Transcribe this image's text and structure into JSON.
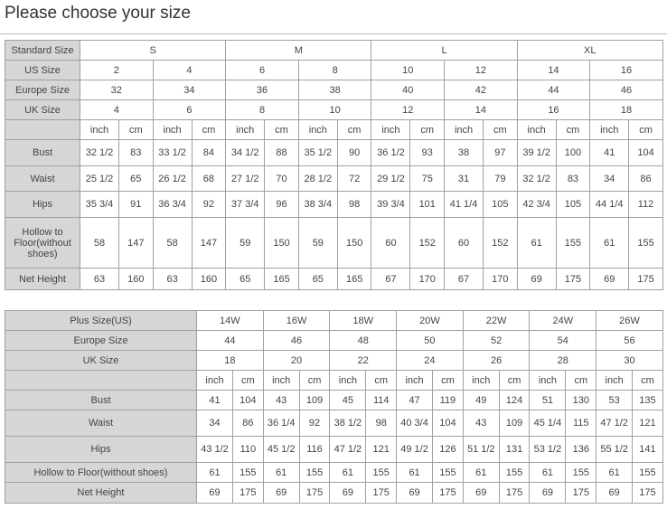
{
  "title": "Please choose your size",
  "standard_table": {
    "header_label": "Standard Size",
    "groups": [
      "S",
      "M",
      "L",
      "XL"
    ],
    "rows_sizes": [
      {
        "label": "US Size",
        "values": [
          "2",
          "4",
          "6",
          "8",
          "10",
          "12",
          "14",
          "16"
        ]
      },
      {
        "label": "Europe Size",
        "values": [
          "32",
          "34",
          "36",
          "38",
          "40",
          "42",
          "44",
          "46"
        ]
      },
      {
        "label": "UK Size",
        "values": [
          "4",
          "6",
          "8",
          "10",
          "12",
          "14",
          "16",
          "18"
        ]
      }
    ],
    "units": [
      "inch",
      "cm"
    ],
    "rows_measure": [
      {
        "label": "Bust",
        "values": [
          "32 1/2",
          "83",
          "33 1/2",
          "84",
          "34 1/2",
          "88",
          "35 1/2",
          "90",
          "36 1/2",
          "93",
          "38",
          "97",
          "39 1/2",
          "100",
          "41",
          "104"
        ]
      },
      {
        "label": "Waist",
        "values": [
          "25 1/2",
          "65",
          "26 1/2",
          "68",
          "27 1/2",
          "70",
          "28 1/2",
          "72",
          "29 1/2",
          "75",
          "31",
          "79",
          "32 1/2",
          "83",
          "34",
          "86"
        ]
      },
      {
        "label": "Hips",
        "values": [
          "35 3/4",
          "91",
          "36 3/4",
          "92",
          "37 3/4",
          "96",
          "38 3/4",
          "98",
          "39 3/4",
          "101",
          "41 1/4",
          "105",
          "42 3/4",
          "105",
          "44 1/4",
          "112"
        ]
      },
      {
        "label": "Hollow to Floor(without shoes)",
        "values": [
          "58",
          "147",
          "58",
          "147",
          "59",
          "150",
          "59",
          "150",
          "60",
          "152",
          "60",
          "152",
          "61",
          "155",
          "61",
          "155"
        ]
      },
      {
        "label": "Net Height",
        "values": [
          "63",
          "160",
          "63",
          "160",
          "65",
          "165",
          "65",
          "165",
          "67",
          "170",
          "67",
          "170",
          "69",
          "175",
          "69",
          "175"
        ]
      }
    ]
  },
  "plus_table": {
    "rows_sizes": [
      {
        "label": "Plus Size(US)",
        "values": [
          "14W",
          "16W",
          "18W",
          "20W",
          "22W",
          "24W",
          "26W"
        ]
      },
      {
        "label": "Europe Size",
        "values": [
          "44",
          "46",
          "48",
          "50",
          "52",
          "54",
          "56"
        ]
      },
      {
        "label": "UK Size",
        "values": [
          "18",
          "20",
          "22",
          "24",
          "26",
          "28",
          "30"
        ]
      }
    ],
    "units": [
      "inch",
      "cm"
    ],
    "rows_measure": [
      {
        "label": "Bust",
        "values": [
          "41",
          "104",
          "43",
          "109",
          "45",
          "114",
          "47",
          "119",
          "49",
          "124",
          "51",
          "130",
          "53",
          "135"
        ]
      },
      {
        "label": "Waist",
        "values": [
          "34",
          "86",
          "36 1/4",
          "92",
          "38 1/2",
          "98",
          "40 3/4",
          "104",
          "43",
          "109",
          "45 1/4",
          "115",
          "47 1/2",
          "121"
        ]
      },
      {
        "label": "Hips",
        "values": [
          "43 1/2",
          "110",
          "45 1/2",
          "116",
          "47 1/2",
          "121",
          "49 1/2",
          "126",
          "51 1/2",
          "131",
          "53 1/2",
          "136",
          "55 1/2",
          "141"
        ]
      },
      {
        "label": "Hollow to Floor(without shoes)",
        "values": [
          "61",
          "155",
          "61",
          "155",
          "61",
          "155",
          "61",
          "155",
          "61",
          "155",
          "61",
          "155",
          "61",
          "155"
        ]
      },
      {
        "label": "Net Height",
        "values": [
          "69",
          "175",
          "69",
          "175",
          "69",
          "175",
          "69",
          "175",
          "69",
          "175",
          "69",
          "175",
          "69",
          "175"
        ]
      }
    ]
  }
}
